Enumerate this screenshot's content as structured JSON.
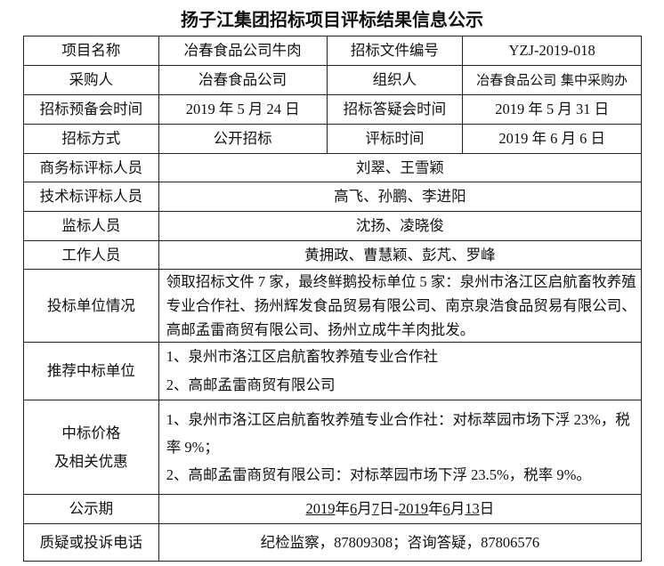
{
  "title": "扬子江集团招标项目评标结果信息公示",
  "rows": {
    "project_name_label": "项目名称",
    "project_name": "冶春食品公司牛肉",
    "doc_no_label": "招标文件编号",
    "doc_no": "YZJ-2019-018",
    "buyer_label": "采购人",
    "buyer": "冶春食品公司",
    "organizer_label": "组织人",
    "organizer": "冶春食品公司 集中采购办",
    "pre_meeting_label": "招标预备会时间",
    "pre_meeting": "2019 年 5 月 24 日",
    "qa_meeting_label": "招标答疑会时间",
    "qa_meeting": "2019 年 5 月 31 日",
    "method_label": "招标方式",
    "method": "公开招标",
    "eval_time_label": "评标时间",
    "eval_time": "2019 年 6 月 6 日",
    "biz_eval_label": "商务标评标人员",
    "biz_eval": "刘翠、王雪颖",
    "tech_eval_label": "技术标评标人员",
    "tech_eval": "高飞、孙鹏、李进阳",
    "supervisor_label": "监标人员",
    "supervisor": "沈扬、凌晓俊",
    "staff_label": "工作人员",
    "staff": "黄拥政、曹慧颖、彭芃、罗峰",
    "bidders_label": "投标单位情况",
    "bidders": "领取招标文件 7 家，最终鲜鹅投标单位 5 家：泉州市洛江区启航畜牧养殖专业合作社、扬州辉发食品贸易有限公司、南京泉浩食品贸易有限公司、高邮孟雷商贸有限公司、扬州立成牛羊肉批发。",
    "recommended_label": "推荐中标单位",
    "recommended": [
      "1、泉州市洛江区启航畜牧养殖专业合作社",
      "2、高邮孟雷商贸有限公司"
    ],
    "price_label_1": "中标价格",
    "price_label_2": "及相关优惠",
    "price": [
      "1、泉州市洛江区启航畜牧养殖专业合作社：对标萃园市场下浮 23%，税率 9%；",
      "2、高邮孟雷商贸有限公司：对标萃园市场下浮 23.5%，税率 9%。"
    ],
    "period_label": "公示期",
    "period": {
      "y1": "2019",
      "t1": "年",
      "m1": "6",
      "t2": "月",
      "d1": "7",
      "t3": "日-",
      "y2": "2019",
      "t4": "年",
      "m2": "6",
      "t5": "月",
      "d2": "13",
      "t6": "日"
    },
    "contact_label": "质疑或投诉电话",
    "contact": "纪检监察，87809308；咨询答疑，87806576"
  }
}
